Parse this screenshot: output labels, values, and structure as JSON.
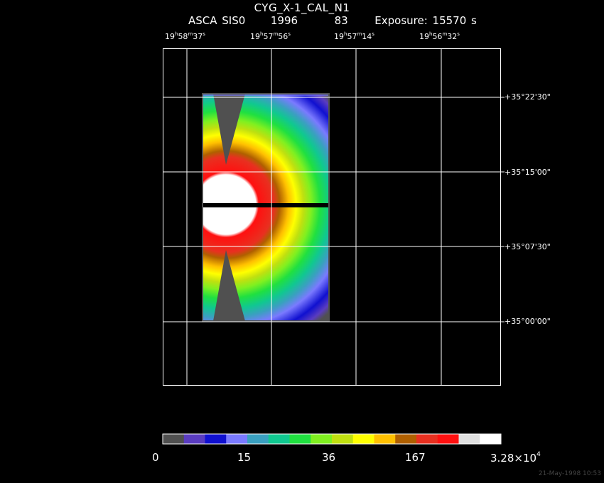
{
  "header": {
    "title": "CYG_X-1_CAL_N1",
    "mission": "ASCA SIS0",
    "year": "1996",
    "day": "83",
    "exposure": "Exposure: 15570 s"
  },
  "ra_ticks": [
    {
      "h": "19",
      "m": "58",
      "s": "37"
    },
    {
      "h": "19",
      "m": "57",
      "s": "56"
    },
    {
      "h": "19",
      "m": "57",
      "s": "14"
    },
    {
      "h": "19",
      "m": "56",
      "s": "32"
    }
  ],
  "dec_ticks": [
    "+35°22'30\"",
    "+35°15'00\"",
    "+35°07'30\"",
    "+35°00'00\""
  ],
  "colorbar": {
    "labels": [
      "0",
      "15",
      "36",
      "167"
    ],
    "max_base": "3.28×10",
    "max_exp": "4",
    "colors": [
      "#505050",
      "#5a3cc0",
      "#1010d0",
      "#7a7aff",
      "#3aa0c0",
      "#10c890",
      "#20e040",
      "#80f020",
      "#c0e010",
      "#ffff00",
      "#ffc000",
      "#b06000",
      "#e83020",
      "#ff1010",
      "#e0e0e0",
      "#ffffff"
    ]
  },
  "footer": {
    "timestamp": "21-May-1998 10:53"
  }
}
